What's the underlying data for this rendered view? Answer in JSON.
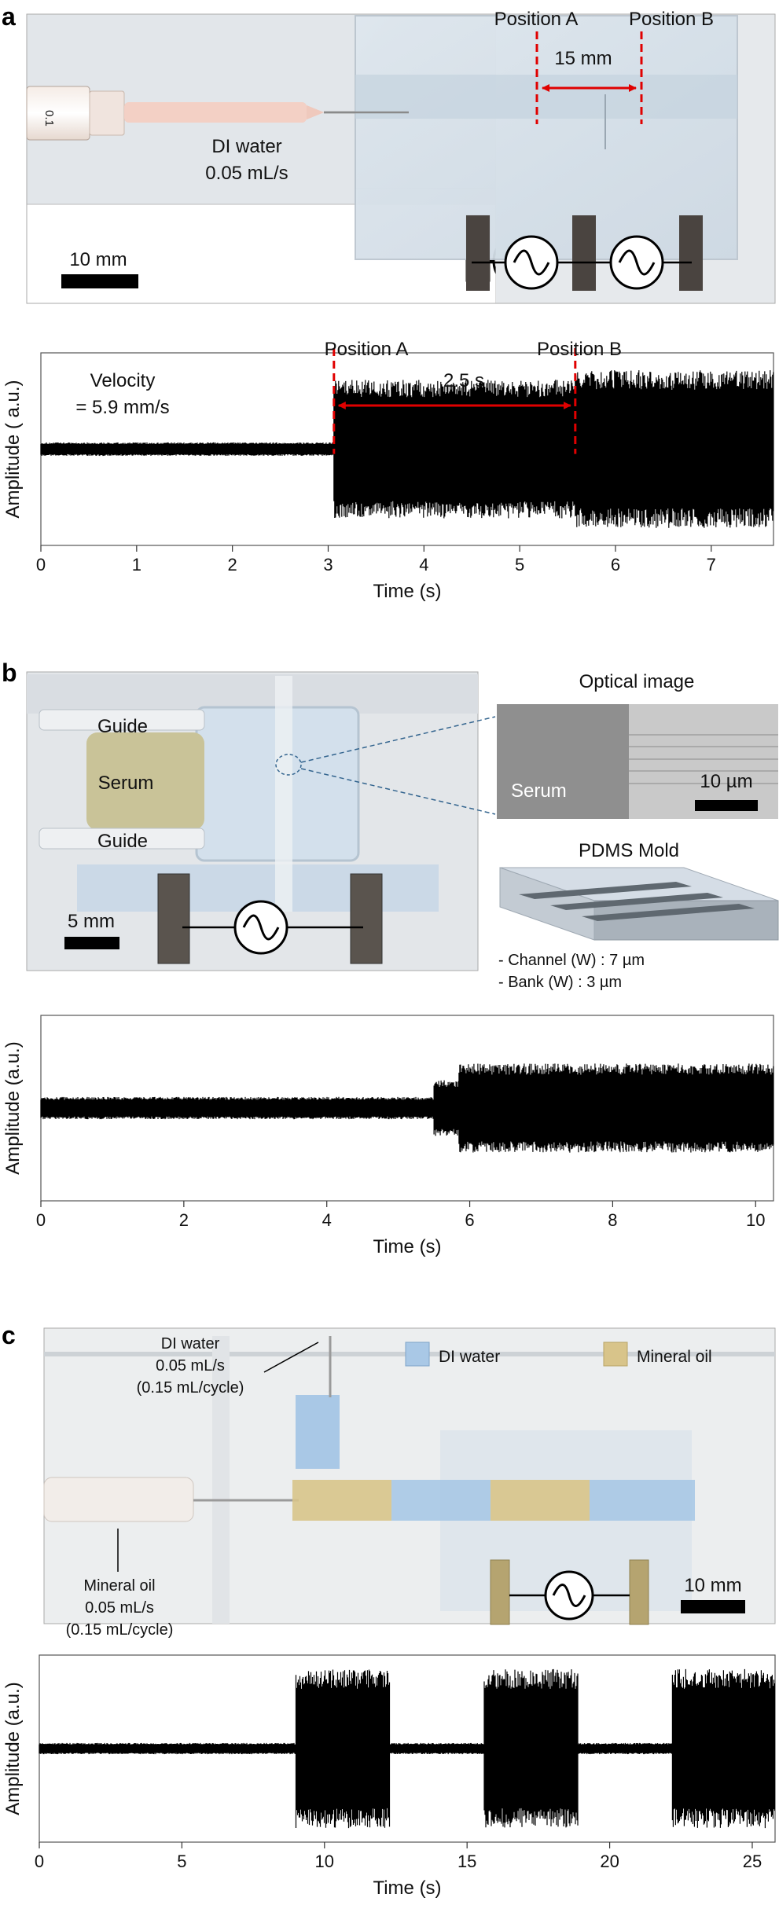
{
  "panel_a": {
    "letter": "a",
    "photo": {
      "position_a": "Position A",
      "position_b": "Position B",
      "distance": "15 mm",
      "fluid_name": "DI water",
      "fluid_rate": "0.05 mL/s",
      "scale_bar": "10 mm",
      "syringe_mark": "0.1"
    },
    "plot": {
      "position_a": "Position A",
      "position_b": "Position B",
      "interval": "2.5 s",
      "velocity_label": "Velocity",
      "velocity_value": "= 5.9 mm/s"
    }
  },
  "panel_b": {
    "letter": "b",
    "photo": {
      "guide_top": "Guide",
      "serum": "Serum",
      "guide_bottom": "Guide",
      "scale_bar": "5 mm"
    },
    "optical": {
      "title": "Optical image",
      "label": "Serum",
      "scale_bar": "10 µm"
    },
    "mold": {
      "title": "PDMS Mold",
      "spec1": "-  Channel (W) : 7 µm",
      "spec2": "-  Bank (W) : 3 µm"
    }
  },
  "panel_c": {
    "letter": "c",
    "photo": {
      "di_line1": "DI water",
      "di_line2": "0.05 mL/s",
      "di_line3": "(0.15 mL/cycle)",
      "oil_line1": "Mineral oil",
      "oil_line2": "0.05 mL/s",
      "oil_line3": "(0.15 mL/cycle)",
      "legend_water": "DI water",
      "legend_oil": "Mineral oil",
      "scale_bar": "10 mm",
      "water_color": "#a9c8e6",
      "oil_color": "#d8c48a"
    }
  },
  "chart_data": [
    {
      "type": "line",
      "panel": "a",
      "title": "",
      "xlabel": "Time (s)",
      "ylabel": "Amplitude ( a.u.)",
      "xlim": [
        0,
        7.65
      ],
      "ylim": [
        -1,
        1
      ],
      "xticks": [
        "0",
        "1",
        "2",
        "3",
        "4",
        "5",
        "6",
        "7"
      ],
      "series": [
        {
          "name": "signal",
          "segments": [
            {
              "x_start": 0,
              "x_end": 3.06,
              "amplitude": 0.07
            },
            {
              "x_start": 3.06,
              "x_end": 5.58,
              "amplitude": 0.72
            },
            {
              "x_start": 5.58,
              "x_end": 7.65,
              "amplitude": 0.82
            }
          ]
        }
      ],
      "markers": [
        {
          "label": "Position A",
          "x": 3.06
        },
        {
          "label": "Position B",
          "x": 5.58
        }
      ],
      "annotation": "2.5 s"
    },
    {
      "type": "line",
      "panel": "b",
      "title": "",
      "xlabel": "Time (s)",
      "ylabel": "Amplitude (a.u.)",
      "xlim": [
        0,
        10.25
      ],
      "ylim": [
        -1,
        1
      ],
      "xticks": [
        "0",
        "2",
        "4",
        "6",
        "8",
        "10"
      ],
      "series": [
        {
          "name": "signal",
          "segments": [
            {
              "x_start": 0,
              "x_end": 5.5,
              "amplitude": 0.12
            },
            {
              "x_start": 5.5,
              "x_end": 5.85,
              "amplitude": 0.3
            },
            {
              "x_start": 5.85,
              "x_end": 10.25,
              "amplitude": 0.48
            }
          ]
        }
      ]
    },
    {
      "type": "line",
      "panel": "c",
      "title": "",
      "xlabel": "Time (s)",
      "ylabel": "Amplitude (a.u.)",
      "xlim": [
        0,
        25.8
      ],
      "ylim": [
        -1,
        1
      ],
      "xticks": [
        "0",
        "5",
        "10",
        "15",
        "20",
        "25"
      ],
      "series": [
        {
          "name": "signal",
          "segments": [
            {
              "x_start": 0,
              "x_end": 9.0,
              "amplitude": 0.06
            },
            {
              "x_start": 9.0,
              "x_end": 12.3,
              "amplitude": 0.85
            },
            {
              "x_start": 12.3,
              "x_end": 15.6,
              "amplitude": 0.06
            },
            {
              "x_start": 15.6,
              "x_end": 18.9,
              "amplitude": 0.85
            },
            {
              "x_start": 18.9,
              "x_end": 22.2,
              "amplitude": 0.06
            },
            {
              "x_start": 22.2,
              "x_end": 25.8,
              "amplitude": 0.85
            }
          ]
        }
      ]
    }
  ]
}
